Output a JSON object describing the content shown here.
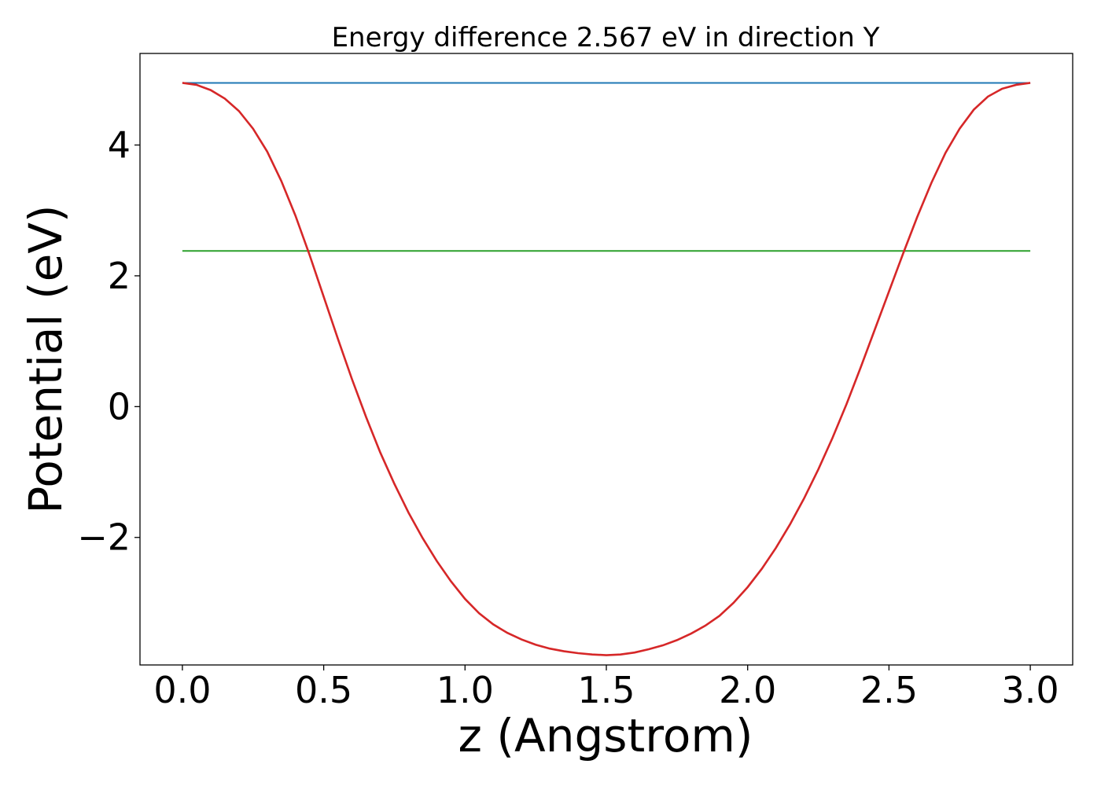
{
  "chart_data": {
    "type": "line",
    "title": "Energy difference 2.567 eV in direction Y",
    "xlabel": "z (Angstrom)",
    "ylabel": "Potential (eV)",
    "xlim": [
      -0.15,
      3.15
    ],
    "ylim": [
      -3.95,
      5.4
    ],
    "x_ticks": [
      0.0,
      0.5,
      1.0,
      1.5,
      2.0,
      2.5,
      3.0
    ],
    "x_tick_labels": [
      "0.0",
      "0.5",
      "1.0",
      "1.5",
      "2.0",
      "2.5",
      "3.0"
    ],
    "y_ticks": [
      -2,
      0,
      2,
      4
    ],
    "y_tick_labels": [
      "−2",
      "0",
      "2",
      "4"
    ],
    "grid": false,
    "series": [
      {
        "color": "#1f77b4",
        "x": [
          0.0,
          3.0
        ],
        "y": [
          4.95,
          4.95
        ]
      },
      {
        "color": "#2ca02c",
        "x": [
          0.0,
          3.0
        ],
        "y": [
          2.38,
          2.38
        ]
      },
      {
        "color": "#d62728",
        "x": [
          0.0,
          0.05,
          0.1,
          0.15,
          0.2,
          0.25,
          0.3,
          0.35,
          0.4,
          0.45,
          0.5,
          0.55,
          0.6,
          0.65,
          0.7,
          0.75,
          0.8,
          0.85,
          0.9,
          0.95,
          1.0,
          1.05,
          1.1,
          1.15,
          1.2,
          1.25,
          1.3,
          1.35,
          1.4,
          1.45,
          1.5,
          1.55,
          1.6,
          1.65,
          1.7,
          1.75,
          1.8,
          1.85,
          1.9,
          1.95,
          2.0,
          2.05,
          2.1,
          2.15,
          2.2,
          2.25,
          2.3,
          2.35,
          2.4,
          2.45,
          2.5,
          2.55,
          2.6,
          2.65,
          2.7,
          2.75,
          2.8,
          2.85,
          2.9,
          2.95,
          3.0
        ],
        "y": [
          4.95,
          4.92,
          4.84,
          4.71,
          4.52,
          4.25,
          3.9,
          3.45,
          2.92,
          2.32,
          1.68,
          1.04,
          0.42,
          -0.16,
          -0.7,
          -1.18,
          -1.62,
          -2.01,
          -2.36,
          -2.67,
          -2.94,
          -3.16,
          -3.33,
          -3.46,
          -3.56,
          -3.64,
          -3.7,
          -3.74,
          -3.77,
          -3.79,
          -3.8,
          -3.79,
          -3.76,
          -3.71,
          -3.65,
          -3.57,
          -3.47,
          -3.35,
          -3.2,
          -3.0,
          -2.76,
          -2.48,
          -2.16,
          -1.8,
          -1.4,
          -0.96,
          -0.48,
          0.04,
          0.6,
          1.18,
          1.76,
          2.34,
          2.9,
          3.42,
          3.88,
          4.25,
          4.54,
          4.74,
          4.86,
          4.92,
          4.95
        ]
      }
    ]
  }
}
